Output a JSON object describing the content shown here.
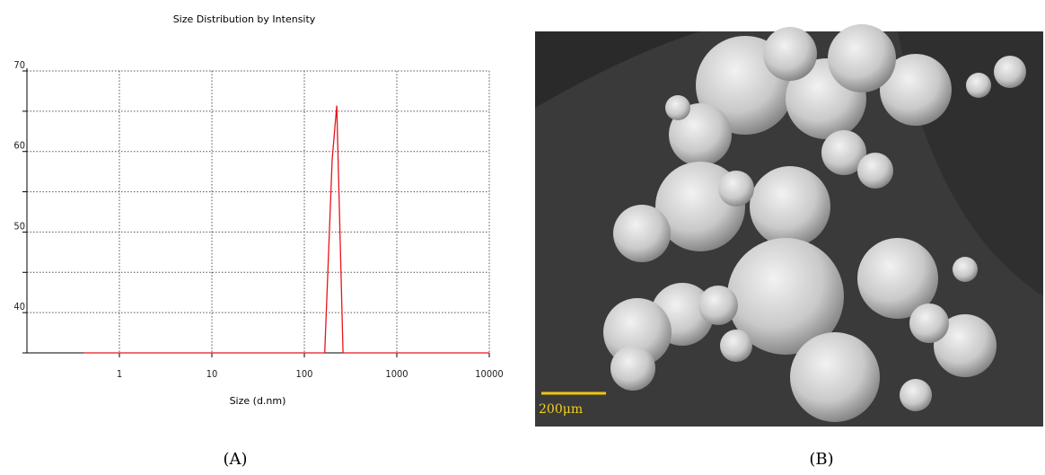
{
  "chart_data": {
    "type": "line",
    "title": "Size Distribution by Intensity",
    "x_label": "Size (d.nm)",
    "x": [
      0.41,
      166,
      200,
      224,
      262,
      10000
    ],
    "values": [
      35,
      35,
      59,
      65.7,
      35,
      35
    ],
    "color": "#e8141c",
    "xlim": [
      0.1,
      10000
    ],
    "xticks": [
      1,
      10,
      100,
      1000,
      10000
    ],
    "log_x": true,
    "ylim": [
      35,
      70
    ],
    "yticks": [
      40,
      50,
      60,
      70
    ],
    "grid": true,
    "minor_ygrid": [
      35,
      45,
      55,
      65
    ]
  },
  "figure": {
    "panel_a": "(A)",
    "panel_b": "(B)",
    "scale_bar": "200μm"
  }
}
